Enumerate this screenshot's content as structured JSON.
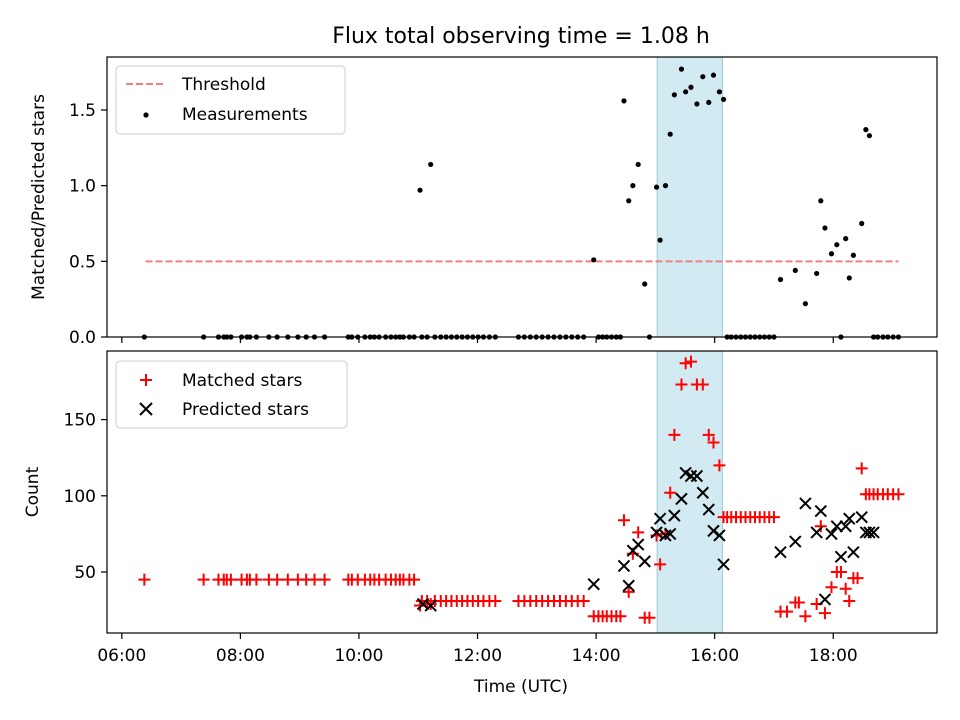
{
  "chart_data": {
    "title": "Flux total observing time = 1.08 h",
    "xlabel": "Time (UTC)",
    "x_ticks": [
      {
        "h": 6,
        "label": "06:00"
      },
      {
        "h": 8,
        "label": "08:00"
      },
      {
        "h": 10,
        "label": "10:00"
      },
      {
        "h": 12,
        "label": "12:00"
      },
      {
        "h": 14,
        "label": "14:00"
      },
      {
        "h": 16,
        "label": "16:00"
      },
      {
        "h": 18,
        "label": "18:00"
      }
    ],
    "xlim": [
      5.75,
      19.75
    ],
    "highlight_span": [
      15.03,
      16.13
    ],
    "colors": {
      "threshold": "#f08080",
      "measurements": "#000000",
      "matched": "#ff0000",
      "predicted": "#000000",
      "span": "#add8e6"
    },
    "top": {
      "type": "scatter",
      "ylabel": "Matched/Predicted stars",
      "ylim": [
        0.0,
        1.85
      ],
      "y_ticks": [
        {
          "v": 0.0,
          "label": "0.0"
        },
        {
          "v": 0.5,
          "label": "0.5"
        },
        {
          "v": 1.0,
          "label": "1.0"
        },
        {
          "v": 1.5,
          "label": "1.5"
        }
      ],
      "threshold": {
        "value": 0.5,
        "x_range": [
          6.4,
          19.1
        ]
      },
      "legend": {
        "threshold": "Threshold",
        "measurements": "Measurements"
      },
      "measurements": {
        "x": [
          6.38,
          7.38,
          7.63,
          7.72,
          7.77,
          7.84,
          8.02,
          8.11,
          8.16,
          8.27,
          8.48,
          8.62,
          8.8,
          8.97,
          9.11,
          9.25,
          9.42,
          9.82,
          9.88,
          9.98,
          10.1,
          10.19,
          10.26,
          10.34,
          10.45,
          10.54,
          10.62,
          10.69,
          10.75,
          10.85,
          10.93,
          11.03,
          11.06,
          11.15,
          11.21,
          11.28,
          11.38,
          11.47,
          11.56,
          11.65,
          11.74,
          11.83,
          11.92,
          12.01,
          12.1,
          12.2,
          12.3,
          12.69,
          12.79,
          12.89,
          12.99,
          13.09,
          13.19,
          13.29,
          13.39,
          13.49,
          13.59,
          13.69,
          13.79,
          13.96,
          14.04,
          14.11,
          14.18,
          14.26,
          14.34,
          14.41,
          14.47,
          14.55,
          14.62,
          14.71,
          14.82,
          14.9,
          15.02,
          15.08,
          15.17,
          15.25,
          15.32,
          15.44,
          15.51,
          15.6,
          15.7,
          15.8,
          15.9,
          15.98,
          16.08,
          16.15,
          16.21,
          16.28,
          16.36,
          16.44,
          16.52,
          16.6,
          16.68,
          16.76,
          16.84,
          16.92,
          17.0,
          17.11,
          17.36,
          17.53,
          17.72,
          17.79,
          17.86,
          17.97,
          18.06,
          18.13,
          18.21,
          18.27,
          18.34,
          18.48,
          18.55,
          18.61,
          18.68,
          18.75,
          18.84,
          18.92,
          19.01,
          19.1
        ],
        "y": [
          0,
          0,
          0,
          0,
          0,
          0,
          0,
          0,
          0,
          0,
          0,
          0,
          0,
          0,
          0,
          0,
          0,
          0,
          0,
          0,
          0,
          0,
          0,
          0,
          0,
          0,
          0,
          0,
          0,
          0,
          0,
          0.97,
          0,
          0,
          1.14,
          0,
          0,
          0,
          0,
          0,
          0,
          0,
          0,
          0,
          0,
          0,
          0,
          0,
          0,
          0,
          0,
          0,
          0,
          0,
          0,
          0,
          0,
          0,
          0,
          0.51,
          0,
          0,
          0,
          0,
          0,
          0,
          1.56,
          0.9,
          1.0,
          1.14,
          0.35,
          0,
          0.99,
          0.64,
          1.0,
          1.34,
          1.6,
          1.77,
          1.62,
          1.65,
          1.54,
          1.72,
          1.55,
          1.73,
          1.62,
          1.57,
          0,
          0,
          0,
          0,
          0,
          0,
          0,
          0,
          0,
          0,
          0,
          0.38,
          0.44,
          0.22,
          0.42,
          0.9,
          0.72,
          0.55,
          0.61,
          0,
          0.65,
          0.39,
          0.54,
          0.75,
          1.37,
          1.33,
          0,
          0,
          0,
          0,
          0,
          0
        ]
      }
    },
    "bottom": {
      "type": "scatter",
      "ylabel": "Count",
      "ylim": [
        10,
        195
      ],
      "y_ticks": [
        {
          "v": 50,
          "label": "50"
        },
        {
          "v": 100,
          "label": "100"
        },
        {
          "v": 150,
          "label": "150"
        }
      ],
      "legend": {
        "matched": "Matched stars",
        "predicted": "Predicted stars"
      },
      "matched": {
        "x": [
          6.38,
          7.38,
          7.63,
          7.72,
          7.77,
          7.84,
          8.02,
          8.11,
          8.16,
          8.27,
          8.48,
          8.62,
          8.8,
          8.97,
          9.11,
          9.25,
          9.42,
          9.82,
          9.88,
          9.98,
          10.1,
          10.19,
          10.26,
          10.34,
          10.45,
          10.54,
          10.62,
          10.69,
          10.75,
          10.85,
          10.93,
          11.03,
          11.06,
          11.15,
          11.21,
          11.28,
          11.38,
          11.47,
          11.56,
          11.65,
          11.74,
          11.83,
          11.92,
          12.01,
          12.1,
          12.2,
          12.3,
          12.69,
          12.79,
          12.89,
          12.99,
          13.09,
          13.19,
          13.29,
          13.39,
          13.49,
          13.59,
          13.69,
          13.79,
          13.96,
          14.04,
          14.11,
          14.18,
          14.26,
          14.34,
          14.41,
          14.47,
          14.55,
          14.62,
          14.71,
          14.82,
          14.9,
          15.02,
          15.08,
          15.17,
          15.25,
          15.32,
          15.44,
          15.51,
          15.6,
          15.7,
          15.8,
          15.9,
          15.98,
          16.08,
          16.15,
          16.21,
          16.28,
          16.36,
          16.44,
          16.52,
          16.6,
          16.68,
          16.76,
          16.84,
          16.92,
          17.0,
          17.11,
          17.22,
          17.36,
          17.42,
          17.53,
          17.72,
          17.79,
          17.86,
          17.97,
          18.06,
          18.13,
          18.21,
          18.27,
          18.34,
          18.41,
          18.48,
          18.55,
          18.61,
          18.68,
          18.75,
          18.84,
          18.92,
          19.01,
          19.1
        ],
        "y": [
          45,
          45,
          45,
          45,
          45,
          45,
          45,
          45,
          45,
          45,
          45,
          45,
          45,
          45,
          45,
          45,
          45,
          45,
          45,
          45,
          45,
          45,
          45,
          45,
          45,
          45,
          45,
          45,
          45,
          45,
          45,
          28,
          31,
          31,
          29,
          31,
          31,
          31,
          31,
          31,
          31,
          31,
          31,
          31,
          31,
          31,
          31,
          31,
          31,
          31,
          31,
          31,
          31,
          31,
          31,
          31,
          31,
          31,
          31,
          21,
          21,
          21,
          21,
          21,
          21,
          21,
          84,
          37,
          62,
          76,
          20,
          20,
          74,
          55,
          75,
          102,
          140,
          173,
          187,
          188,
          173,
          173,
          140,
          135,
          120,
          86,
          86,
          86,
          86,
          86,
          86,
          86,
          86,
          86,
          86,
          86,
          86,
          24,
          24,
          30,
          30,
          21,
          29,
          80,
          23,
          40,
          50,
          50,
          39,
          31,
          46,
          46,
          118,
          101,
          101,
          101,
          101,
          101,
          101,
          101,
          101
        ]
      },
      "predicted": {
        "x": [
          11.08,
          11.21,
          13.96,
          14.47,
          14.55,
          14.62,
          14.71,
          14.82,
          15.02,
          15.08,
          15.17,
          15.25,
          15.32,
          15.44,
          15.51,
          15.6,
          15.7,
          15.8,
          15.9,
          15.98,
          16.08,
          16.15,
          17.11,
          17.36,
          17.53,
          17.72,
          17.79,
          17.86,
          17.97,
          18.06,
          18.13,
          18.21,
          18.27,
          18.34,
          18.48,
          18.55,
          18.61,
          18.68
        ],
        "y": [
          29,
          28,
          42,
          54,
          41,
          64,
          68,
          57,
          76,
          85,
          74,
          75,
          87,
          98,
          115,
          113,
          113,
          102,
          91,
          77,
          74,
          55,
          63,
          70,
          95,
          76,
          90,
          32,
          75,
          80,
          60,
          80,
          85,
          63,
          86,
          76,
          76,
          76
        ]
      }
    }
  }
}
